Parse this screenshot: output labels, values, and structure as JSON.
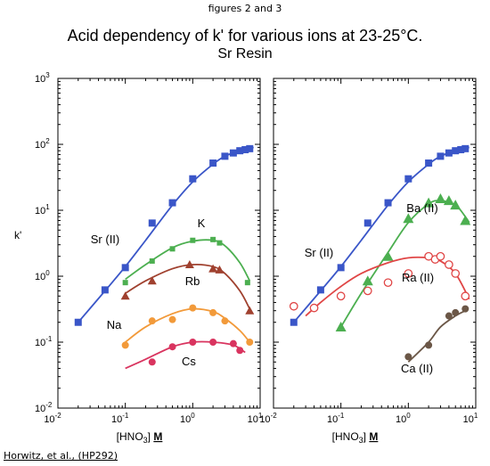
{
  "header": {
    "caption": "figures 2 and 3",
    "title": "Acid dependency of k' for various ions at 23-25°C.",
    "subtitle": "Sr Resin"
  },
  "footer": {
    "credit": "Horwitz, et al., (HP292)"
  },
  "chart_data": [
    {
      "type": "scatter",
      "title": "",
      "xlabel_main": "[HNO",
      "xlabel_sub": "3",
      "xlabel_end": "] ",
      "xlabel_unit": "M",
      "ylabel": "k'",
      "xscale": "log",
      "yscale": "log",
      "xlim": [
        0.01,
        10
      ],
      "ylim": [
        0.01,
        1000
      ],
      "x_ticks": [
        {
          "base": "10",
          "exp": "-2"
        },
        {
          "base": "10",
          "exp": "-1"
        },
        {
          "base": "10",
          "exp": "0"
        },
        {
          "base": "10",
          "exp": "1"
        }
      ],
      "y_ticks": [
        {
          "base": "10",
          "exp": "-2"
        },
        {
          "base": "10",
          "exp": "-1"
        },
        {
          "base": "10",
          "exp": "0"
        },
        {
          "base": "10",
          "exp": "1"
        },
        {
          "base": "10",
          "exp": "2"
        },
        {
          "base": "10",
          "exp": "3"
        }
      ],
      "series": [
        {
          "name": "Sr (II)",
          "color": "#3a56c8",
          "marker": "square",
          "x": [
            0.02,
            0.05,
            0.1,
            0.25,
            0.5,
            1.0,
            2.0,
            3.0,
            4.0,
            5.0,
            6.0,
            7.0
          ],
          "y": [
            0.2,
            0.62,
            1.35,
            6.4,
            13,
            30,
            52,
            66,
            74,
            80,
            83,
            86
          ],
          "curve_x": [
            0.02,
            0.05,
            0.1,
            0.2,
            0.5,
            1,
            2,
            3,
            5,
            8
          ],
          "curve_y": [
            0.2,
            0.6,
            1.4,
            3.5,
            12,
            27,
            50,
            66,
            80,
            90
          ]
        },
        {
          "name": "K",
          "color": "#4caf50",
          "marker": "square-small",
          "x": [
            0.1,
            0.25,
            0.5,
            1.0,
            2.0,
            2.5,
            6.5
          ],
          "y": [
            0.8,
            1.7,
            2.6,
            3.5,
            3.6,
            3.2,
            0.8
          ],
          "curve_x": [
            0.1,
            0.2,
            0.5,
            1,
            2,
            3,
            5,
            7
          ],
          "curve_y": [
            0.9,
            1.5,
            2.7,
            3.4,
            3.5,
            2.9,
            1.6,
            0.85
          ]
        },
        {
          "name": "Rb",
          "color": "#a0412f",
          "marker": "triangle",
          "x": [
            0.1,
            0.25,
            0.9,
            2.0,
            2.5,
            7.0
          ],
          "y": [
            0.5,
            0.85,
            1.5,
            1.3,
            1.25,
            0.3
          ],
          "curve_x": [
            0.1,
            0.2,
            0.5,
            1,
            2,
            3,
            5,
            7
          ],
          "curve_y": [
            0.55,
            0.85,
            1.3,
            1.5,
            1.4,
            1.1,
            0.6,
            0.32
          ]
        },
        {
          "name": "Na",
          "color": "#f29a3a",
          "marker": "circle",
          "x": [
            0.1,
            0.25,
            0.5,
            1.0,
            2.0,
            3.0,
            7.0
          ],
          "y": [
            0.09,
            0.21,
            0.22,
            0.33,
            0.28,
            0.21,
            0.1
          ],
          "curve_x": [
            0.1,
            0.2,
            0.5,
            1,
            2,
            3,
            5,
            7
          ],
          "curve_y": [
            0.1,
            0.17,
            0.27,
            0.32,
            0.29,
            0.23,
            0.15,
            0.1
          ]
        },
        {
          "name": "Cs",
          "color": "#d9345f",
          "marker": "circle",
          "x": [
            0.25,
            0.5,
            1.0,
            2.0,
            4.0,
            5.0
          ],
          "y": [
            0.05,
            0.085,
            0.1,
            0.1,
            0.095,
            0.075
          ],
          "curve_x": [
            0.1,
            0.2,
            0.5,
            1,
            2,
            4,
            6
          ],
          "curve_y": [
            0.04,
            0.055,
            0.085,
            0.1,
            0.1,
            0.09,
            0.07
          ]
        }
      ]
    },
    {
      "type": "scatter",
      "title": "",
      "xlabel_main": "[HNO",
      "xlabel_sub": "3",
      "xlabel_end": "] ",
      "xlabel_unit": "M",
      "ylabel": "",
      "xscale": "log",
      "yscale": "log",
      "xlim": [
        0.01,
        10
      ],
      "ylim": [
        0.01,
        1000
      ],
      "x_ticks": [
        {
          "base": "10",
          "exp": "-2"
        },
        {
          "base": "10",
          "exp": "-1"
        },
        {
          "base": "10",
          "exp": "0"
        },
        {
          "base": "10",
          "exp": "1"
        }
      ],
      "series": [
        {
          "name": "Sr (II)",
          "color": "#3a56c8",
          "marker": "square",
          "x": [
            0.02,
            0.05,
            0.1,
            0.25,
            0.5,
            1.0,
            2.0,
            3.0,
            4.0,
            5.0,
            6.0,
            7.0
          ],
          "y": [
            0.2,
            0.62,
            1.35,
            6.4,
            13,
            30,
            52,
            66,
            74,
            80,
            83,
            86
          ],
          "curve_x": [
            0.02,
            0.05,
            0.1,
            0.2,
            0.5,
            1,
            2,
            3,
            5,
            8
          ],
          "curve_y": [
            0.2,
            0.6,
            1.4,
            3.5,
            12,
            27,
            50,
            66,
            80,
            90
          ]
        },
        {
          "name": "Ba (II)",
          "color": "#4caf50",
          "marker": "triangle-large",
          "x": [
            0.1,
            0.25,
            0.5,
            1.0,
            2.0,
            3.0,
            4.0,
            5.0,
            7.0
          ],
          "y": [
            0.17,
            0.85,
            2.0,
            7.5,
            13,
            15,
            14,
            12,
            7
          ],
          "curve_x": [
            0.1,
            0.2,
            0.5,
            1,
            2,
            3,
            5,
            7,
            8
          ],
          "curve_y": [
            0.17,
            0.55,
            2.3,
            6.5,
            12.5,
            14,
            12,
            8,
            6.5
          ]
        },
        {
          "name": "Ra (II)",
          "color": "#e04646",
          "marker": "circle-open",
          "x": [
            0.02,
            0.04,
            0.1,
            0.25,
            0.5,
            1.0,
            2.0,
            2.5,
            3.0,
            4.0,
            5.0,
            7.0
          ],
          "y": [
            0.35,
            0.33,
            0.5,
            0.6,
            0.8,
            1.1,
            2.0,
            1.8,
            2.0,
            1.5,
            1.1,
            0.5
          ],
          "curve_x": [
            0.03,
            0.05,
            0.1,
            0.2,
            0.5,
            1,
            2,
            3,
            5,
            8
          ],
          "curve_y": [
            0.25,
            0.4,
            0.7,
            1.1,
            1.6,
            1.9,
            1.9,
            1.7,
            1.1,
            0.45
          ]
        },
        {
          "name": "Ca (II)",
          "color": "#6b5747",
          "marker": "circle",
          "x": [
            1.0,
            2.0,
            4.0,
            5.0,
            7.0
          ],
          "y": [
            0.06,
            0.09,
            0.25,
            0.28,
            0.32
          ],
          "curve_x": [
            1,
            2,
            3,
            5,
            7
          ],
          "curve_y": [
            0.05,
            0.1,
            0.17,
            0.25,
            0.3
          ]
        }
      ]
    }
  ]
}
